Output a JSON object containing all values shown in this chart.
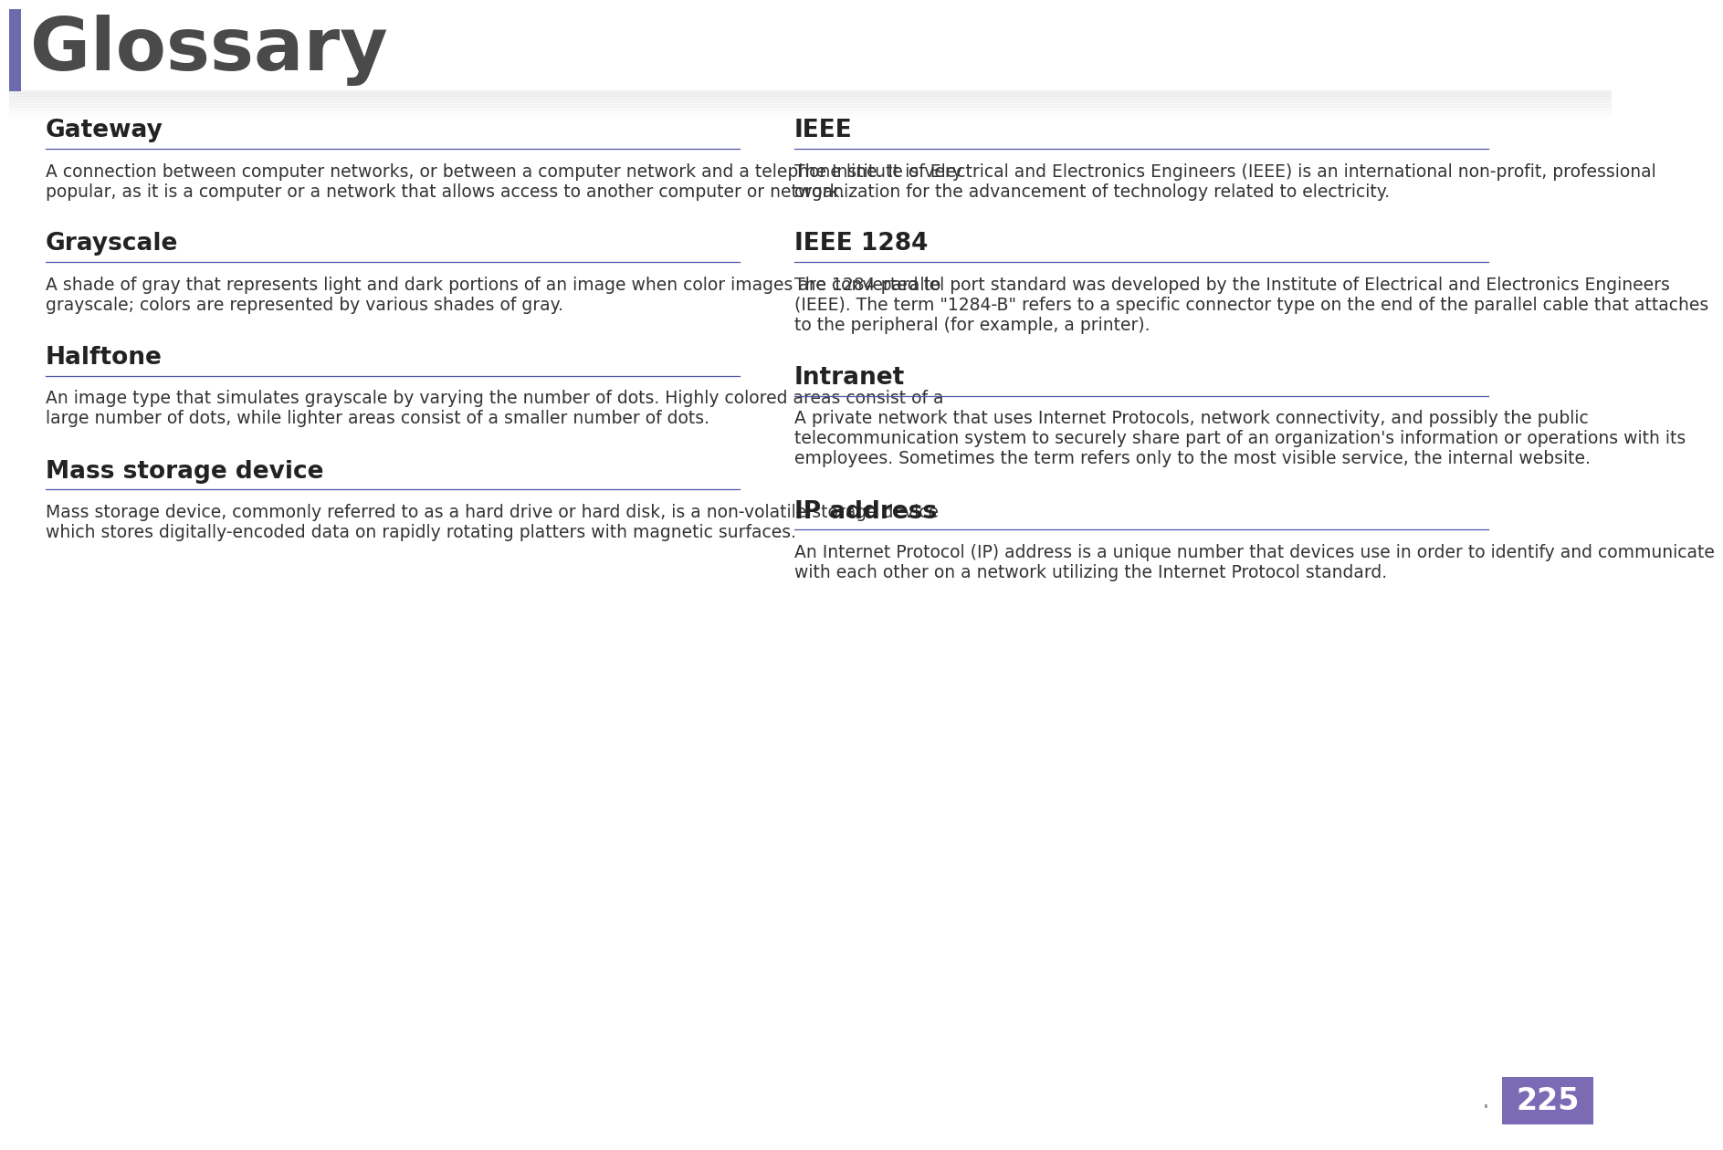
{
  "title": "Glossary",
  "title_color": "#4a4a4a",
  "accent_bar_color": "#6B6BAE",
  "page_number": "225",
  "page_number_bg": "#7B6BB5",
  "page_number_color": "#ffffff",
  "header_line_color": "#c8c8c8",
  "section_line_color": "#5555aa",
  "term_color": "#222222",
  "body_color": "#333333",
  "background_color": "#ffffff",
  "entries": [
    {
      "term": "Gateway",
      "definition": "A connection between computer networks, or between a computer network and a telephone line. It is very popular, as it is a computer or a network that allows access to another computer or network.",
      "col": 0
    },
    {
      "term": "Grayscale",
      "definition": "A shade of gray that represents light and dark portions of an image when color images are converted to grayscale; colors are represented by various shades of gray.",
      "col": 0
    },
    {
      "term": "Halftone",
      "definition": "An image type that simulates grayscale by varying the number of dots. Highly colored areas consist of a large number of dots, while lighter areas consist of a smaller number of dots.",
      "col": 0
    },
    {
      "term": "Mass storage device",
      "definition": "Mass storage device, commonly referred to as a hard drive or hard disk, is a non-volatile storage device which stores digitally-encoded data on rapidly rotating platters with magnetic surfaces.",
      "col": 0
    },
    {
      "term": "IEEE",
      "definition": "The Institute of Electrical and Electronics Engineers (IEEE) is an international non-profit, professional organization for the advancement of technology related to electricity.",
      "col": 1
    },
    {
      "term": "IEEE 1284",
      "definition": "The 1284 parallel port standard was developed by the Institute of Electrical and Electronics Engineers (IEEE). The term \"1284-B\" refers to a specific connector type on the end of the parallel cable that attaches to the peripheral (for example, a printer).",
      "col": 1
    },
    {
      "term": "Intranet",
      "definition": "A private network that uses Internet Protocols, network connectivity, and possibly the public telecommunication system to securely share part of an organization's information or operations with its employees. Sometimes the term refers only to the most visible service, the internal website.",
      "col": 1
    },
    {
      "term": "IP address",
      "definition": "An Internet Protocol (IP) address is a unique number that devices use in order to identify and communicate with each other on a network utilizing the Internet Protocol standard.",
      "col": 1
    }
  ]
}
